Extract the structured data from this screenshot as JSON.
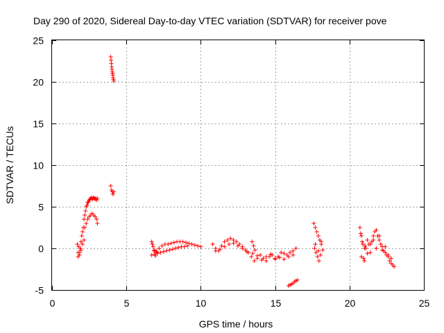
{
  "chart_data": {
    "type": "scatter",
    "title": "Day 290 of 2020, Sidereal Day-to-day VTEC variation (SDTVAR) for receiver pove",
    "xlabel": "GPS time / hours",
    "ylabel": "SDTVAR / TECUs",
    "xlim": [
      0,
      25
    ],
    "ylim": [
      -5,
      25
    ],
    "xticks": [
      0,
      5,
      10,
      15,
      20,
      25
    ],
    "yticks": [
      -5,
      0,
      5,
      10,
      15,
      20,
      25
    ],
    "xtick_labels": [
      "0",
      "5",
      "10",
      "15",
      "20",
      "25"
    ],
    "ytick_labels": [
      "-5",
      "0",
      "5",
      "10",
      "15",
      "20",
      "25"
    ],
    "grid": true,
    "marker": "plus",
    "color": "#ff0000",
    "series": [
      {
        "name": "pove",
        "x": [
          1.7,
          1.75,
          1.8,
          1.85,
          1.9,
          1.95,
          2.0,
          2.05,
          2.1,
          2.15,
          2.2,
          2.25,
          2.3,
          2.35,
          2.4,
          2.45,
          2.5,
          2.55,
          2.6,
          2.65,
          2.7,
          2.75,
          2.8,
          2.85,
          2.9,
          2.95,
          3.0,
          3.05,
          2.2,
          2.3,
          2.4,
          2.5,
          2.6,
          2.7,
          2.8,
          2.9,
          3.0,
          3.05,
          1.75,
          1.85,
          1.95,
          2.05,
          2.15,
          3.95,
          3.97,
          3.99,
          4.01,
          4.03,
          4.05,
          4.07,
          4.09,
          4.11,
          4.13,
          4.15,
          3.95,
          4.0,
          4.05,
          4.1,
          4.15,
          6.7,
          6.8,
          6.9,
          7.0,
          7.2,
          7.4,
          7.6,
          7.8,
          8.0,
          8.2,
          8.4,
          8.6,
          8.8,
          9.0,
          9.2,
          9.4,
          9.6,
          9.8,
          10.0,
          6.7,
          6.9,
          7.1,
          7.3,
          7.5,
          7.7,
          7.9,
          8.1,
          8.3,
          8.5,
          8.7,
          8.9,
          9.1,
          6.75,
          6.85,
          6.95,
          7.05,
          10.8,
          11.0,
          11.2,
          11.4,
          11.6,
          11.8,
          12.0,
          12.2,
          12.4,
          12.6,
          12.8,
          13.0,
          13.2,
          11.0,
          11.3,
          11.6,
          11.9,
          12.2,
          12.5,
          12.8,
          13.1,
          13.4,
          13.6,
          13.8,
          14.0,
          14.2,
          14.4,
          14.6,
          14.8,
          15.0,
          15.2,
          15.4,
          15.6,
          15.8,
          16.0,
          16.2,
          16.4,
          13.5,
          13.8,
          14.1,
          14.4,
          14.7,
          15.0,
          15.3,
          15.6,
          15.9,
          16.2,
          13.45,
          13.55,
          13.65,
          15.9,
          16.0,
          16.1,
          16.2,
          16.3,
          16.4,
          16.5,
          17.6,
          17.7,
          17.8,
          17.9,
          18.0,
          18.1,
          18.2,
          17.65,
          17.75,
          17.85,
          17.95,
          18.05,
          17.7,
          17.9,
          18.1,
          20.7,
          20.8,
          20.9,
          21.0,
          21.1,
          21.2,
          21.3,
          21.4,
          21.5,
          21.6,
          21.7,
          21.8,
          21.9,
          22.0,
          22.1,
          22.2,
          22.3,
          22.4,
          22.5,
          22.6,
          22.7,
          22.8,
          22.9,
          23.0,
          20.8,
          21.0,
          21.2,
          21.4,
          21.6,
          21.8,
          22.0,
          22.2,
          22.4,
          22.6,
          22.8,
          20.75,
          20.85,
          20.95,
          21.05
        ],
        "y": [
          0.5,
          -0.5,
          0.2,
          -0.8,
          0.0,
          0.8,
          1.5,
          2.0,
          2.5,
          3.5,
          4.0,
          4.5,
          5.0,
          5.2,
          5.5,
          5.6,
          5.8,
          5.9,
          6.0,
          6.1,
          5.9,
          6.0,
          6.1,
          6.0,
          5.9,
          6.0,
          5.8,
          6.0,
          2.5,
          3.0,
          3.5,
          3.8,
          4.0,
          4.2,
          4.0,
          3.8,
          3.5,
          3.0,
          -1.0,
          -0.5,
          -0.2,
          0.5,
          1.0,
          23.0,
          22.6,
          22.2,
          21.8,
          21.5,
          21.2,
          21.0,
          20.8,
          20.5,
          20.3,
          20.1,
          7.5,
          7.0,
          6.8,
          6.5,
          6.8,
          0.8,
          0.2,
          -0.2,
          -0.5,
          0.0,
          0.3,
          0.5,
          0.5,
          0.6,
          0.7,
          0.8,
          0.8,
          0.8,
          0.7,
          0.6,
          0.5,
          0.4,
          0.3,
          0.2,
          -0.8,
          -0.7,
          -0.6,
          -0.5,
          -0.4,
          -0.3,
          -0.2,
          -0.1,
          0.0,
          0.1,
          0.2,
          0.2,
          0.3,
          0.5,
          -0.3,
          -0.9,
          -0.4,
          0.5,
          0.0,
          -0.3,
          0.3,
          0.8,
          1.0,
          1.2,
          1.0,
          0.8,
          0.5,
          0.2,
          -0.2,
          -0.5,
          -0.3,
          -0.1,
          0.2,
          0.5,
          0.6,
          0.3,
          0.0,
          -0.4,
          -1.0,
          -1.5,
          -1.2,
          -0.8,
          -1.2,
          -1.5,
          -1.0,
          -0.8,
          -1.2,
          -1.0,
          -0.5,
          -1.3,
          -0.8,
          -0.5,
          -0.3,
          0.0,
          -0.6,
          -0.9,
          -1.4,
          -1.0,
          -0.7,
          -1.3,
          -1.1,
          -0.6,
          -1.0,
          -0.8,
          0.8,
          0.3,
          -0.2,
          -4.5,
          -4.4,
          -4.3,
          -4.2,
          -4.0,
          -3.9,
          -3.8,
          3.0,
          2.5,
          2.0,
          1.5,
          1.0,
          0.5,
          -0.2,
          0.0,
          -0.5,
          -1.0,
          -1.5,
          -0.8,
          0.5,
          -0.3,
          0.8,
          2.5,
          1.5,
          0.5,
          -1.5,
          0.0,
          1.0,
          0.5,
          -0.5,
          0.8,
          1.5,
          2.0,
          2.2,
          1.5,
          1.0,
          0.5,
          0.2,
          -0.3,
          -0.5,
          -0.8,
          -1.0,
          -1.5,
          -1.8,
          -2.0,
          -2.2,
          -1.0,
          0.0,
          -0.6,
          0.5,
          1.0,
          0.0,
          1.5,
          -0.2,
          0.2,
          -0.8,
          -1.2,
          1.8,
          0.8,
          -1.2,
          0.3
        ]
      }
    ]
  }
}
